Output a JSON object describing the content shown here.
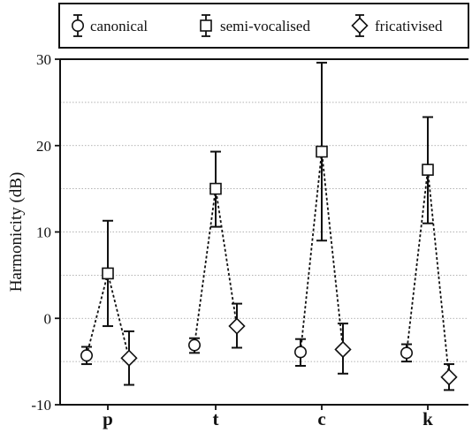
{
  "chart_data": {
    "type": "scatter",
    "ylabel": "Harmonicity (dB)",
    "xlabel": "",
    "title": "",
    "categories": [
      "p",
      "t",
      "c",
      "k"
    ],
    "ylim": [
      -10,
      30
    ],
    "yticks": [
      -10,
      0,
      10,
      20,
      30
    ],
    "ytick_labels": [
      "-10",
      "0",
      "10",
      "20",
      "30"
    ],
    "grid": {
      "horizontal": true,
      "style": "dotted",
      "step": 5
    },
    "legend": {
      "position": "top",
      "frame": true
    },
    "connector": {
      "style": "dashed",
      "color": "#111111"
    },
    "series": [
      {
        "name": "canonical",
        "marker": "circle",
        "values": [
          -4.3,
          -3.1,
          -3.9,
          -4.0
        ],
        "err_low": [
          -5.3,
          -4.0,
          -5.5,
          -5.0
        ],
        "err_high": [
          -3.3,
          -2.3,
          -2.4,
          -3.0
        ]
      },
      {
        "name": "semi-vocalised",
        "marker": "square",
        "values": [
          5.2,
          15.0,
          19.3,
          17.2
        ],
        "err_low": [
          -0.9,
          10.6,
          9.0,
          11.0
        ],
        "err_high": [
          11.3,
          19.3,
          29.6,
          23.3
        ]
      },
      {
        "name": "fricativised",
        "marker": "diamond",
        "values": [
          -4.6,
          -0.9,
          -3.6,
          -6.8
        ],
        "err_low": [
          -7.7,
          -3.4,
          -6.4,
          -8.3
        ],
        "err_high": [
          -1.5,
          1.7,
          -0.6,
          -5.3
        ]
      }
    ]
  }
}
